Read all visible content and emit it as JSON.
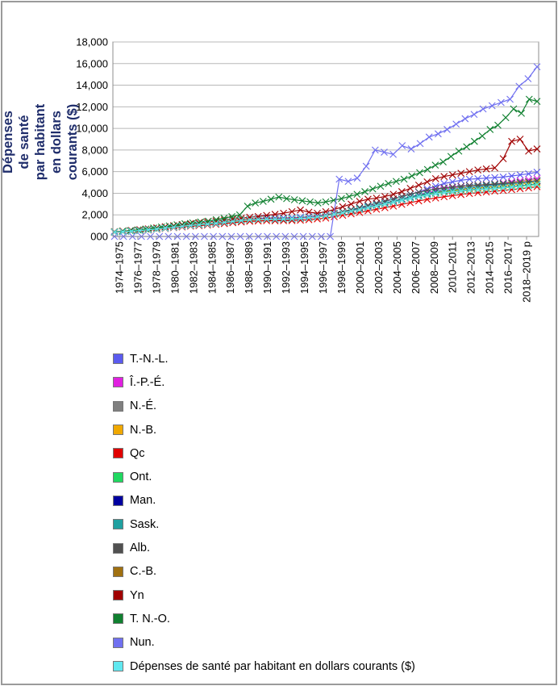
{
  "chart_data": {
    "type": "line",
    "ylabel": "Dépenses de santé par habitant en dollars courants ($)",
    "ylim": [
      0,
      18000
    ],
    "yticks": [
      "000",
      "2,000",
      "4,000",
      "6,000",
      "8,000",
      "10,000",
      "12,000",
      "14,000",
      "16,000",
      "18,000"
    ],
    "ytick_values": [
      0,
      2000,
      4000,
      6000,
      8000,
      10000,
      12000,
      14000,
      16000,
      18000
    ],
    "xtick_labels": [
      "1974–1975",
      "1976–1977",
      "1978–1979",
      "1980–1981",
      "1982–1983",
      "1984–1985",
      "1986–1987",
      "1988–1989",
      "1990–1991",
      "1992–1993",
      "1994–1995",
      "1996–1997",
      "1998–1999",
      "2000–2001",
      "2002–2003",
      "2004–2005",
      "2006–2007",
      "2008–2009",
      "2010–2011",
      "2012–2013",
      "2014–2015",
      "2016–2017",
      "2018–2019 p"
    ],
    "grid": true,
    "legend_position": "bottom",
    "series": [
      {
        "name": "T.-N.-L.",
        "color": "#5b5bef",
        "values": [
          420,
          460,
          520,
          580,
          650,
          720,
          820,
          900,
          980,
          1060,
          1120,
          1180,
          1250,
          1340,
          1440,
          1520,
          1600,
          1660,
          1720,
          1700,
          1720,
          1740,
          1780,
          1830,
          1900,
          2000,
          2150,
          2300,
          2480,
          2650,
          2860,
          3050,
          3250,
          3450,
          3700,
          3900,
          4100,
          4400,
          4650,
          4900,
          5050,
          5200,
          5300,
          5350,
          5400,
          5450,
          5500,
          5600,
          5700,
          5800,
          5950
        ]
      },
      {
        "name": "Î.-P.-É.",
        "color": "#e020e0",
        "values": [
          380,
          420,
          470,
          530,
          600,
          670,
          750,
          830,
          910,
          990,
          1050,
          1110,
          1180,
          1260,
          1350,
          1430,
          1500,
          1540,
          1580,
          1580,
          1600,
          1620,
          1660,
          1720,
          1800,
          1900,
          2050,
          2200,
          2360,
          2530,
          2700,
          2880,
          3050,
          3250,
          3450,
          3650,
          3850,
          4050,
          4250,
          4400,
          4500,
          4600,
          4700,
          4750,
          4800,
          4850,
          4950,
          5050,
          5150,
          5250,
          5350
        ]
      },
      {
        "name": "N.-É.",
        "color": "#808080",
        "values": [
          390,
          430,
          480,
          540,
          610,
          680,
          760,
          840,
          920,
          1000,
          1060,
          1120,
          1190,
          1270,
          1360,
          1440,
          1510,
          1550,
          1590,
          1580,
          1600,
          1620,
          1660,
          1720,
          1800,
          1900,
          2050,
          2200,
          2350,
          2500,
          2680,
          2850,
          3000,
          3200,
          3400,
          3600,
          3780,
          3960,
          4120,
          4250,
          4350,
          4450,
          4550,
          4620,
          4680,
          4740,
          4800,
          4880,
          4960,
          5040,
          5120
        ]
      },
      {
        "name": "N.-B.",
        "color": "#f0a800",
        "values": [
          380,
          420,
          470,
          530,
          600,
          670,
          750,
          830,
          910,
          990,
          1050,
          1110,
          1180,
          1260,
          1350,
          1430,
          1500,
          1540,
          1580,
          1570,
          1590,
          1610,
          1650,
          1710,
          1790,
          1890,
          2040,
          2180,
          2330,
          2480,
          2650,
          2820,
          2980,
          3150,
          3350,
          3550,
          3720,
          3880,
          4030,
          4150,
          4250,
          4350,
          4450,
          4500,
          4560,
          4620,
          4700,
          4780,
          4860,
          4940,
          5000
        ]
      },
      {
        "name": "Qc",
        "color": "#e00000",
        "values": [
          380,
          420,
          470,
          530,
          590,
          660,
          740,
          810,
          880,
          950,
          1000,
          1060,
          1120,
          1190,
          1270,
          1340,
          1400,
          1430,
          1460,
          1450,
          1460,
          1470,
          1500,
          1550,
          1620,
          1700,
          1830,
          1960,
          2090,
          2220,
          2370,
          2520,
          2660,
          2810,
          2970,
          3130,
          3290,
          3430,
          3560,
          3680,
          3780,
          3880,
          3980,
          4050,
          4120,
          4190,
          4260,
          4340,
          4420,
          4500,
          4600
        ]
      },
      {
        "name": "Ont.",
        "color": "#20d860",
        "values": [
          410,
          450,
          500,
          560,
          630,
          700,
          790,
          870,
          950,
          1030,
          1090,
          1150,
          1220,
          1310,
          1400,
          1480,
          1550,
          1580,
          1610,
          1600,
          1620,
          1640,
          1680,
          1740,
          1820,
          1920,
          2060,
          2200,
          2360,
          2520,
          2700,
          2870,
          3030,
          3200,
          3380,
          3560,
          3720,
          3870,
          4000,
          4100,
          4180,
          4250,
          4330,
          4380,
          4430,
          4480,
          4540,
          4620,
          4700,
          4780,
          4850
        ]
      },
      {
        "name": "Man.",
        "color": "#0000a0",
        "values": [
          400,
          440,
          490,
          550,
          620,
          690,
          780,
          860,
          940,
          1020,
          1080,
          1140,
          1210,
          1300,
          1390,
          1470,
          1540,
          1580,
          1620,
          1610,
          1630,
          1650,
          1690,
          1750,
          1830,
          1940,
          2090,
          2240,
          2400,
          2560,
          2740,
          2920,
          3090,
          3270,
          3460,
          3650,
          3820,
          3980,
          4130,
          4250,
          4350,
          4450,
          4550,
          4620,
          4690,
          4760,
          4840,
          4920,
          5000,
          5080,
          5160
        ]
      },
      {
        "name": "Sask.",
        "color": "#20a0a0",
        "values": [
          390,
          430,
          480,
          540,
          610,
          680,
          770,
          850,
          930,
          1010,
          1070,
          1130,
          1200,
          1290,
          1380,
          1460,
          1530,
          1570,
          1610,
          1600,
          1620,
          1640,
          1680,
          1740,
          1820,
          1930,
          2080,
          2230,
          2380,
          2540,
          2720,
          2900,
          3070,
          3250,
          3440,
          3630,
          3800,
          3960,
          4110,
          4230,
          4330,
          4430,
          4530,
          4600,
          4670,
          4740,
          4820,
          4900,
          4980,
          5060,
          5140
        ]
      },
      {
        "name": "Alb.",
        "color": "#505050",
        "values": [
          420,
          460,
          510,
          580,
          660,
          740,
          840,
          920,
          1000,
          1080,
          1140,
          1200,
          1270,
          1360,
          1450,
          1530,
          1600,
          1620,
          1580,
          1550,
          1560,
          1580,
          1640,
          1720,
          1820,
          1950,
          2120,
          2300,
          2480,
          2670,
          2880,
          3080,
          3280,
          3480,
          3700,
          3920,
          4100,
          4260,
          4400,
          4500,
          4580,
          4650,
          4720,
          4760,
          4800,
          4850,
          4900,
          4960,
          5020,
          5080,
          5150
        ]
      },
      {
        "name": "C.-B.",
        "color": "#a07010",
        "values": [
          410,
          450,
          500,
          560,
          630,
          700,
          790,
          870,
          950,
          1030,
          1090,
          1150,
          1220,
          1310,
          1400,
          1480,
          1550,
          1580,
          1610,
          1600,
          1610,
          1630,
          1670,
          1730,
          1810,
          1910,
          2050,
          2190,
          2340,
          2490,
          2660,
          2830,
          2990,
          3160,
          3340,
          3520,
          3680,
          3820,
          3950,
          4050,
          4130,
          4200,
          4280,
          4330,
          4380,
          4430,
          4490,
          4560,
          4630,
          4700,
          4770
        ]
      },
      {
        "name": "Yn",
        "color": "#a00000",
        "values": [
          450,
          500,
          560,
          630,
          710,
          800,
          900,
          1000,
          1100,
          1200,
          1280,
          1360,
          1440,
          1530,
          1620,
          1700,
          1780,
          1850,
          1950,
          2050,
          2150,
          2300,
          2450,
          2250,
          2150,
          2300,
          2500,
          2750,
          3000,
          3250,
          3450,
          3550,
          3700,
          3900,
          4150,
          4450,
          4750,
          5050,
          5350,
          5550,
          5700,
          5850,
          6000,
          6150,
          6250,
          6350,
          7200,
          8800,
          9000,
          7900,
          8100
        ]
      },
      {
        "name": "T. N.-O.",
        "color": "#108030",
        "values": [
          430,
          480,
          540,
          610,
          690,
          780,
          880,
          980,
          1080,
          1180,
          1260,
          1340,
          1420,
          1560,
          1700,
          1840,
          2000,
          2800,
          3100,
          3250,
          3450,
          3650,
          3500,
          3400,
          3300,
          3200,
          3100,
          3200,
          3350,
          3500,
          3700,
          3900,
          4150,
          4400,
          4650,
          4900,
          5100,
          5300,
          5600,
          5900,
          6200,
          6600,
          6900,
          7400,
          7900,
          8300,
          8800,
          9300,
          9900,
          10300,
          11000,
          11800,
          11400,
          12700,
          12500
        ]
      },
      {
        "name": "Nun.",
        "color": "#7070f0",
        "values": [
          0,
          0,
          0,
          0,
          0,
          0,
          0,
          0,
          0,
          0,
          0,
          0,
          0,
          0,
          0,
          0,
          0,
          0,
          0,
          0,
          0,
          0,
          0,
          0,
          0,
          5300,
          5100,
          5400,
          6500,
          8000,
          7800,
          7600,
          8400,
          8100,
          8600,
          9200,
          9500,
          9900,
          10400,
          10900,
          11300,
          11800,
          12100,
          12400,
          12700,
          13900,
          14600,
          15700
        ]
      },
      {
        "name": "Dépenses de santé par habitant en dollars courants ($)",
        "color": "#60e8f0",
        "values": [
          400,
          440,
          490,
          550,
          620,
          690,
          780,
          860,
          940,
          1020,
          1080,
          1140,
          1210,
          1300,
          1390,
          1470,
          1540,
          1570,
          1600,
          1590,
          1610,
          1630,
          1670,
          1730,
          1810,
          1910,
          2050,
          2190,
          2340,
          2490,
          2660,
          2830,
          2990,
          3160,
          3340,
          3520,
          3680,
          3820,
          3950,
          4050,
          4130,
          4200,
          4280,
          4330,
          4380,
          4430,
          4490,
          4560,
          4630,
          4700,
          4800
        ]
      }
    ]
  }
}
